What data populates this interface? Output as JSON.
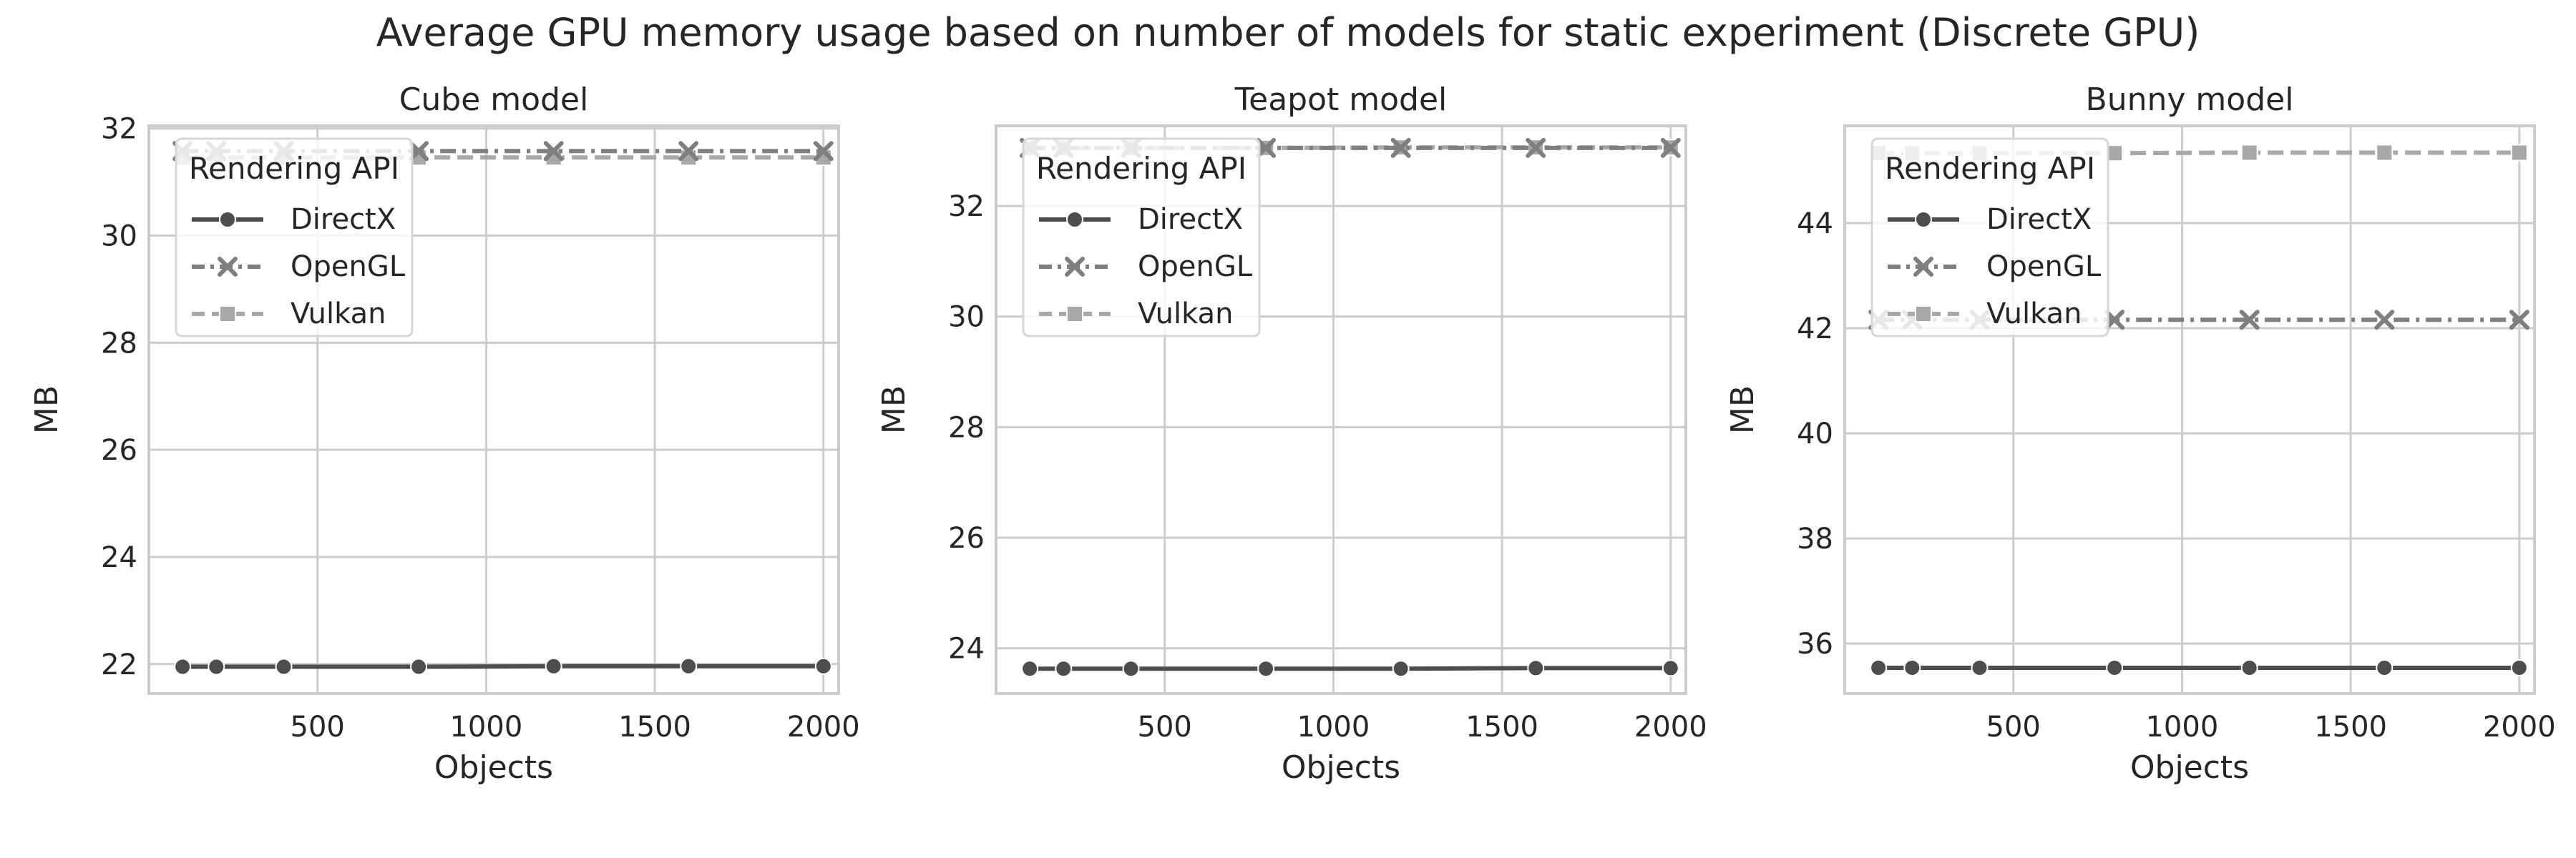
{
  "figure": {
    "title": "Average GPU memory usage based on number of models for static experiment (Discrete GPU)"
  },
  "styles": {
    "series_colors": [
      "#4d4d4d",
      "#7f7f7f",
      "#a8a8a8"
    ],
    "grid_color": "#cccccc",
    "spine_color": "#cccccc",
    "background": "#ffffff"
  },
  "chart_data": [
    {
      "type": "line",
      "title": "Cube model",
      "xlabel": "Objects",
      "ylabel": "MB",
      "xlim": [
        0,
        2045
      ],
      "ylim": [
        21.45,
        32.05
      ],
      "xticks": [
        500,
        1000,
        1500,
        2000
      ],
      "yticks": [
        22,
        24,
        26,
        28,
        30,
        32
      ],
      "grid": true,
      "legend": {
        "title": "Rendering API",
        "position": "upper-left"
      },
      "x": [
        100,
        200,
        400,
        800,
        1200,
        1600,
        2000
      ],
      "series": [
        {
          "name": "DirectX",
          "marker": "circle",
          "linestyle": "solid",
          "values": [
            21.95,
            21.95,
            21.95,
            21.95,
            21.96,
            21.96,
            21.96
          ]
        },
        {
          "name": "OpenGL",
          "marker": "x",
          "linestyle": "dashdot",
          "values": [
            31.58,
            31.58,
            31.58,
            31.58,
            31.58,
            31.58,
            31.58
          ]
        },
        {
          "name": "Vulkan",
          "marker": "square",
          "linestyle": "dashed",
          "values": [
            31.46,
            31.46,
            31.46,
            31.46,
            31.46,
            31.46,
            31.46
          ]
        }
      ]
    },
    {
      "type": "line",
      "title": "Teapot model",
      "xlabel": "Objects",
      "ylabel": "MB",
      "xlim": [
        0,
        2045
      ],
      "ylim": [
        23.18,
        33.45
      ],
      "xticks": [
        500,
        1000,
        1500,
        2000
      ],
      "yticks": [
        24,
        26,
        28,
        30,
        32
      ],
      "grid": true,
      "legend": {
        "title": "Rendering API",
        "position": "upper-left"
      },
      "x": [
        100,
        200,
        400,
        800,
        1200,
        1600,
        2000
      ],
      "series": [
        {
          "name": "DirectX",
          "marker": "circle",
          "linestyle": "solid",
          "values": [
            23.63,
            23.63,
            23.63,
            23.63,
            23.63,
            23.64,
            23.64
          ]
        },
        {
          "name": "OpenGL",
          "marker": "x",
          "linestyle": "dashdot",
          "values": [
            33.05,
            33.05,
            33.05,
            33.05,
            33.05,
            33.05,
            33.05
          ]
        },
        {
          "name": "Vulkan",
          "marker": "square",
          "linestyle": "dashed",
          "values": [
            33.05,
            33.05,
            33.05,
            33.05,
            33.06,
            33.06,
            33.06
          ]
        }
      ]
    },
    {
      "type": "line",
      "title": "Bunny model",
      "xlabel": "Objects",
      "ylabel": "MB",
      "xlim": [
        0,
        2045
      ],
      "ylim": [
        35.05,
        45.85
      ],
      "xticks": [
        500,
        1000,
        1500,
        2000
      ],
      "yticks": [
        36,
        38,
        40,
        42,
        44
      ],
      "grid": true,
      "legend": {
        "title": "Rendering API",
        "position": "upper-left"
      },
      "x": [
        100,
        200,
        400,
        800,
        1200,
        1600,
        2000
      ],
      "series": [
        {
          "name": "DirectX",
          "marker": "circle",
          "linestyle": "solid",
          "values": [
            35.54,
            35.54,
            35.54,
            35.54,
            35.54,
            35.54,
            35.54
          ]
        },
        {
          "name": "OpenGL",
          "marker": "x",
          "linestyle": "dashdot",
          "values": [
            42.16,
            42.16,
            42.16,
            42.16,
            42.16,
            42.16,
            42.16
          ]
        },
        {
          "name": "Vulkan",
          "marker": "square",
          "linestyle": "dashed",
          "values": [
            45.33,
            45.33,
            45.33,
            45.33,
            45.34,
            45.34,
            45.34
          ]
        }
      ]
    }
  ]
}
